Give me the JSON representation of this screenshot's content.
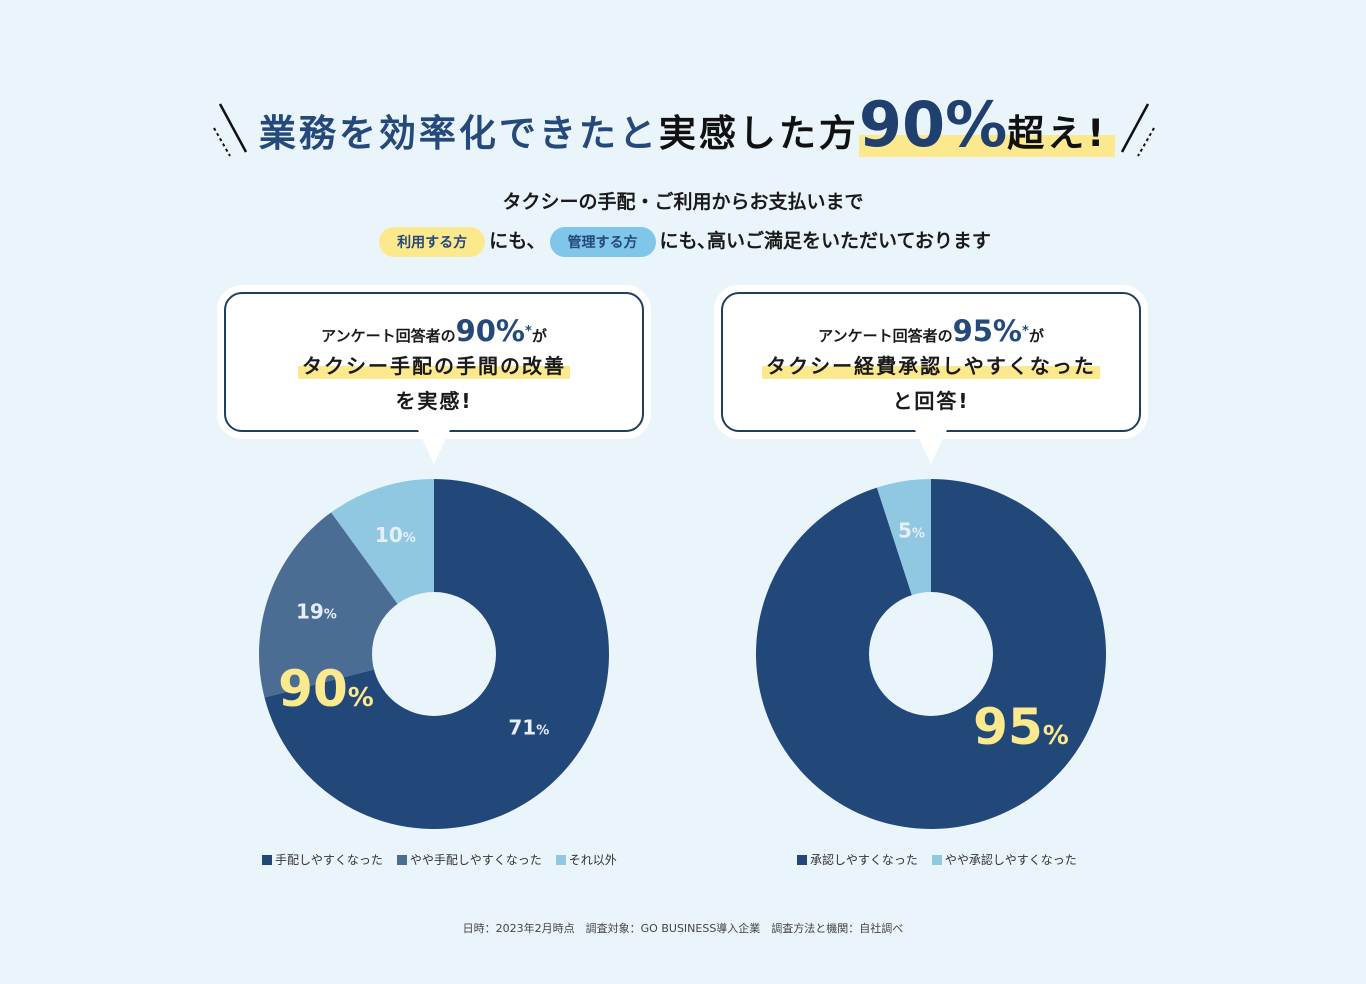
{
  "headline": {
    "part_blue": "業務を効率化できたと",
    "part_black": "実感した方",
    "big": "90%",
    "suffix": "超え!"
  },
  "subtitle": "タクシーの手配・ご利用からお支払いまで",
  "line2": {
    "pill_user": "利用する方",
    "mid": "にも、",
    "pill_admin": "管理する方",
    "end": "にも､高いご満足をいただいております"
  },
  "left_bubble": {
    "lead": "アンケート回答者の",
    "pct": "90%",
    "star": "*",
    "after": "が",
    "line2": "タクシー手配の手間の改善",
    "line3": "を実感!"
  },
  "right_bubble": {
    "lead": "アンケート回答者の",
    "pct": "95%",
    "star": "*",
    "after": "が",
    "line2": "タクシー経費承認しやすくなった",
    "line3": "と回答!"
  },
  "colors": {
    "dark": "#22487a",
    "mid": "#4b6d94",
    "light": "#90c8e2",
    "highlight": "#fde98d"
  },
  "chart_data": [
    {
      "type": "pie",
      "donut": true,
      "categories": [
        "手配しやすくなった",
        "やや手配しやすくなった",
        "それ以外"
      ],
      "values": [
        71,
        19,
        10
      ],
      "labels": [
        "71",
        "19",
        "10"
      ],
      "unit": "%",
      "highlight": {
        "value": "90",
        "unit": "%"
      },
      "legend_position": "bottom"
    },
    {
      "type": "pie",
      "donut": true,
      "categories": [
        "承認しやすくなった",
        "やや承認しやすくなった"
      ],
      "values": [
        95,
        5
      ],
      "labels": [
        "",
        "5"
      ],
      "unit": "%",
      "highlight": {
        "value": "95",
        "unit": "%"
      },
      "legend_position": "bottom"
    }
  ],
  "footer": "日時：2023年2月時点　調査対象：GO BUSINESS導入企業　調査方法と機関：自社調べ"
}
